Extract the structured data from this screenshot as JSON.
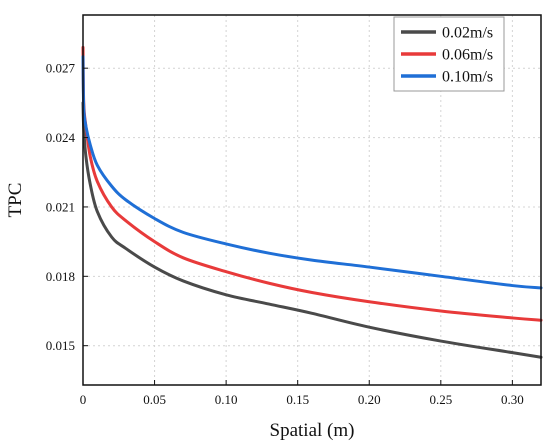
{
  "chart_data": {
    "type": "line",
    "xlabel": "Spatial (m)",
    "ylabel": "TPC",
    "xlim": [
      0,
      0.32
    ],
    "ylim": [
      0.0133,
      0.0293
    ],
    "xticks": [
      0,
      0.05,
      0.1,
      0.15,
      0.2,
      0.25,
      0.3
    ],
    "xtick_labels": [
      "0",
      "0.05",
      "0.10",
      "0.15",
      "0.20",
      "0.25",
      "0.30"
    ],
    "yticks": [
      0.015,
      0.018,
      0.021,
      0.024,
      0.027
    ],
    "ytick_labels": [
      "0.015",
      "0.018",
      "0.021",
      "0.024",
      "0.027"
    ],
    "grid": true,
    "legend_position": "top-right",
    "series": [
      {
        "name": "0.02m/s",
        "color": "#4a4a4a",
        "x": [
          0,
          0.0005,
          0.002,
          0.005,
          0.01,
          0.02,
          0.03,
          0.05,
          0.07,
          0.1,
          0.13,
          0.16,
          0.2,
          0.25,
          0.3,
          0.32
        ],
        "y": [
          0.0255,
          0.0244,
          0.0232,
          0.022,
          0.0208,
          0.0197,
          0.0192,
          0.0184,
          0.0178,
          0.0172,
          0.0168,
          0.0164,
          0.0158,
          0.0152,
          0.0147,
          0.0145
        ]
      },
      {
        "name": "0.06m/s",
        "color": "#e83a3a",
        "x": [
          0,
          0.0005,
          0.002,
          0.005,
          0.01,
          0.02,
          0.03,
          0.05,
          0.07,
          0.1,
          0.13,
          0.16,
          0.2,
          0.25,
          0.3,
          0.32
        ],
        "y": [
          0.0279,
          0.0255,
          0.0245,
          0.0232,
          0.0221,
          0.021,
          0.0204,
          0.0195,
          0.0188,
          0.0182,
          0.0177,
          0.0173,
          0.0169,
          0.0165,
          0.0162,
          0.0161
        ]
      },
      {
        "name": "0.10m/s",
        "color": "#1f6fd6",
        "x": [
          0,
          0.0005,
          0.002,
          0.005,
          0.01,
          0.02,
          0.03,
          0.05,
          0.07,
          0.1,
          0.13,
          0.16,
          0.2,
          0.25,
          0.3,
          0.32
        ],
        "y": [
          0.0275,
          0.0253,
          0.0245,
          0.0237,
          0.0228,
          0.0219,
          0.0213,
          0.0205,
          0.0199,
          0.0194,
          0.019,
          0.0187,
          0.0184,
          0.018,
          0.0176,
          0.0175
        ]
      }
    ]
  }
}
